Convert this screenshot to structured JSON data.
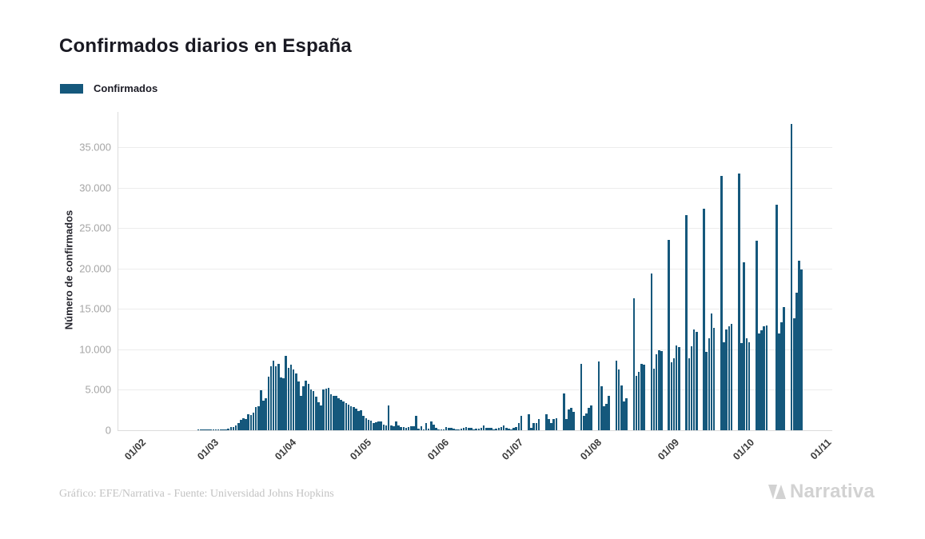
{
  "page": {
    "title": "Confirmados diarios en España"
  },
  "legend": {
    "label": "Confirmados"
  },
  "footer": {
    "credit": "Gráfico: EFE/Narrativa - Fuente: Universidad Johns Hopkins",
    "logo_text": "Narrativa"
  },
  "colors": {
    "bar": "#15587c",
    "title_text": "#191922",
    "y_tick_text": "#a5a5a5",
    "x_tick_text": "#3b3b3b",
    "gridline": "#ececec",
    "axis_line": "#dcdcdc",
    "credit_text": "#c3c3c3",
    "logo_gray": "#d2d2d2"
  },
  "chart_data": {
    "type": "bar",
    "title": "Confirmados diarios en España",
    "series_name": "Confirmados",
    "xlabel": "",
    "ylabel": "Número de confirmados",
    "ylim": [
      0,
      38900
    ],
    "grid": "horizontal",
    "legend_position": "top-left",
    "y_ticks": [
      {
        "value": 0,
        "label": "0"
      },
      {
        "value": 5000,
        "label": "5.000"
      },
      {
        "value": 10000,
        "label": "10.000"
      },
      {
        "value": 15000,
        "label": "15.000"
      },
      {
        "value": 20000,
        "label": "20.000"
      },
      {
        "value": 25000,
        "label": "25.000"
      },
      {
        "value": 30000,
        "label": "30.000"
      },
      {
        "value": 35000,
        "label": "35.000"
      }
    ],
    "x_ticks": [
      {
        "label": "01/02",
        "day_index": 0
      },
      {
        "label": "01/03",
        "day_index": 29
      },
      {
        "label": "01/04",
        "day_index": 60
      },
      {
        "label": "01/05",
        "day_index": 90
      },
      {
        "label": "01/06",
        "day_index": 121
      },
      {
        "label": "01/07",
        "day_index": 151
      },
      {
        "label": "01/08",
        "day_index": 182
      },
      {
        "label": "01/09",
        "day_index": 213
      },
      {
        "label": "01/10",
        "day_index": 243
      },
      {
        "label": "01/11",
        "day_index": 274
      }
    ],
    "values_start_label": "01/02",
    "values_end_label": "23/10",
    "values": [
      0,
      0,
      0,
      0,
      0,
      0,
      0,
      0,
      0,
      0,
      0,
      0,
      0,
      0,
      0,
      0,
      0,
      0,
      0,
      0,
      0,
      0,
      0,
      0,
      2,
      9,
      15,
      19,
      13,
      37,
      30,
      31,
      57,
      39,
      141,
      100,
      173,
      374,
      400,
      557,
      900,
      1258,
      1526,
      1351,
      1934,
      1843,
      2162,
      2833,
      2933,
      4946,
      3646,
      3930,
      6584,
      7937,
      8578,
      7871,
      8189,
      6549,
      6398,
      9222,
      7719,
      8102,
      7472,
      7026,
      6023,
      4273,
      5478,
      6180,
      5756,
      5051,
      4830,
      4167,
      3477,
      3045,
      5092,
      5183,
      5252,
      4499,
      4218,
      4266,
      3968,
      3800,
      3600,
      3400,
      3200,
      3000,
      2900,
      2700,
      2400,
      2500,
      1800,
      1500,
      1300,
      1179,
      867,
      996,
      1122,
      1095,
      721,
      621,
      3046,
      594,
      506,
      1070,
      643,
      372,
      421,
      295,
      431,
      518,
      482,
      1787,
      246,
      482,
      132,
      859,
      182,
      1137,
      658,
      271,
      96,
      71,
      137,
      394,
      334,
      332,
      240,
      102,
      148,
      167,
      249,
      427,
      318,
      322,
      96,
      181,
      219,
      315,
      585,
      307,
      264,
      334,
      126,
      190,
      249,
      443,
      564,
      301,
      175,
      108,
      301,
      388,
      884,
      1800,
      0,
      0,
      2000,
      341,
      852,
      900,
      1410,
      0,
      0,
      1944,
      1361,
      875,
      1361,
      1525,
      0,
      0,
      4581,
      1357,
      2615,
      2789,
      2255,
      0,
      0,
      8200,
      1828,
      2031,
      2789,
      3092,
      0,
      0,
      8500,
      5400,
      3000,
      3300,
      4300,
      0,
      0,
      8600,
      7500,
      5500,
      3600,
      4000,
      0,
      0,
      16269,
      6700,
      7200,
      8200,
      8100,
      0,
      0,
      19382,
      7600,
      9400,
      9900,
      9800,
      0,
      0,
      23572,
      8400,
      8900,
      10476,
      10328,
      0,
      0,
      26560,
      8900,
      10400,
      12500,
      12200,
      0,
      0,
      27404,
      9700,
      11400,
      14400,
      12700,
      0,
      0,
      31428,
      10900,
      12500,
      12900,
      13200,
      0,
      0,
      31785,
      10800,
      20800,
      11400,
      10900,
      0,
      0,
      23480,
      12000,
      12400,
      12900,
      13000,
      0,
      0,
      0,
      27856,
      11970,
      13318,
      15186,
      0,
      0,
      37889,
      13873,
      16973,
      20986,
      19851
    ]
  }
}
